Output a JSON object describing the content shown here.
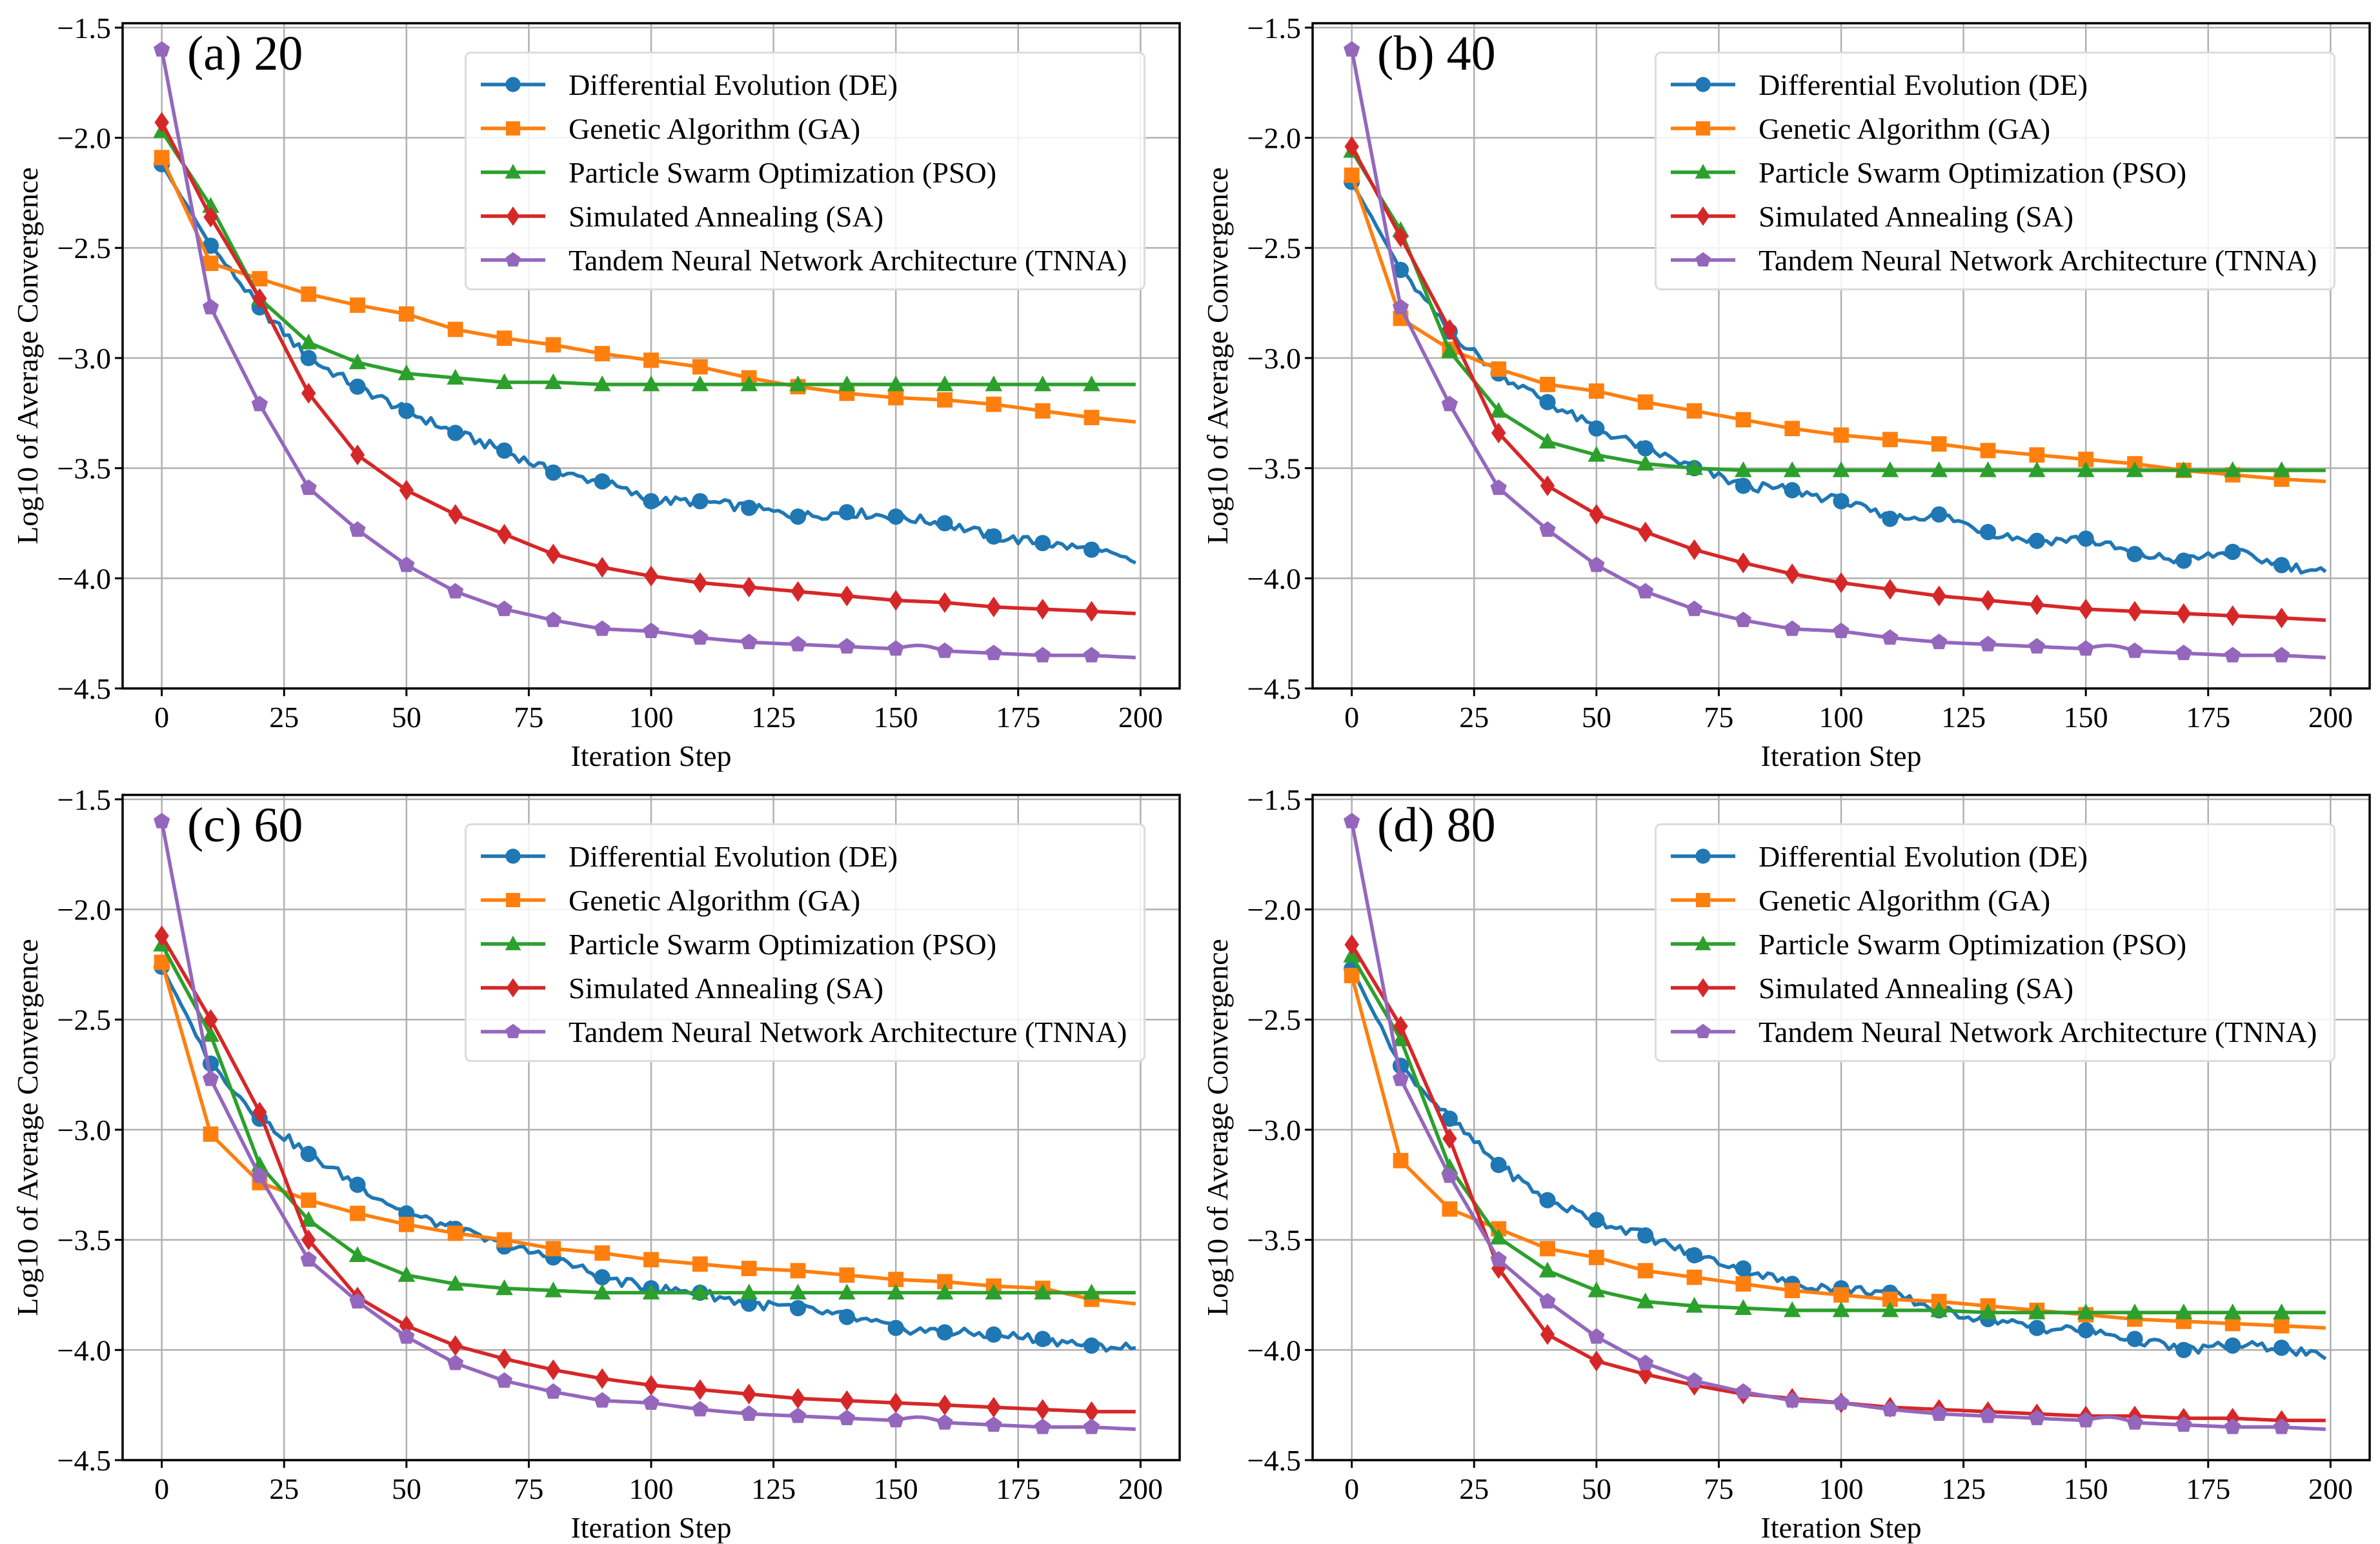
{
  "figure": {
    "legend_labels": [
      "Differential Evolution (DE)",
      "Genetic Algorithm (GA)",
      "Particle Swarm Optimization (PSO)",
      "Simulated Annealing (SA)",
      "Tandem Neural Network Architecture (TNNA)"
    ],
    "colors": {
      "DE": "#1f77b4",
      "GA": "#ff7f0e",
      "PSO": "#2ca02c",
      "SA": "#d62728",
      "TNNA": "#9467bd"
    }
  },
  "chart_data": [
    {
      "type": "line",
      "title": "(a) 20",
      "xlabel": "Iteration Step",
      "ylabel": "Log10 of Average Convergence",
      "xlim": [
        -8,
        208
      ],
      "ylim": [
        -4.5,
        -1.48
      ],
      "xticks": [
        0,
        25,
        50,
        75,
        100,
        125,
        150,
        175,
        200
      ],
      "yticks": [
        -4.5,
        -4.0,
        -3.5,
        -3.0,
        -2.5,
        -2.0,
        -1.5
      ],
      "ytick_labels": [
        "−4.5",
        "−4.0",
        "−3.5",
        "−3.0",
        "−2.5",
        "−2.0",
        "−1.5"
      ],
      "grid": true,
      "legend_position": "top-right",
      "x": [
        0,
        10,
        20,
        30,
        40,
        50,
        60,
        70,
        80,
        90,
        100,
        110,
        120,
        130,
        140,
        150,
        160,
        170,
        180,
        190,
        199
      ],
      "series": [
        {
          "name": "Differential Evolution (DE)",
          "key": "DE",
          "marker": "circle",
          "values": [
            -2.12,
            -2.49,
            -2.77,
            -3.0,
            -3.13,
            -3.24,
            -3.34,
            -3.42,
            -3.52,
            -3.56,
            -3.65,
            -3.65,
            -3.68,
            -3.72,
            -3.7,
            -3.72,
            -3.75,
            -3.81,
            -3.84,
            -3.87,
            -3.93
          ]
        },
        {
          "name": "Genetic Algorithm (GA)",
          "key": "GA",
          "marker": "square",
          "values": [
            -2.09,
            -2.57,
            -2.64,
            -2.71,
            -2.76,
            -2.8,
            -2.87,
            -2.91,
            -2.94,
            -2.98,
            -3.01,
            -3.04,
            -3.09,
            -3.13,
            -3.16,
            -3.18,
            -3.19,
            -3.21,
            -3.24,
            -3.27,
            -3.29
          ]
        },
        {
          "name": "Particle Swarm Optimization (PSO)",
          "key": "PSO",
          "marker": "triangle",
          "values": [
            -1.97,
            -2.31,
            -2.73,
            -2.93,
            -3.02,
            -3.07,
            -3.09,
            -3.11,
            -3.11,
            -3.12,
            -3.12,
            -3.12,
            -3.12,
            -3.12,
            -3.12,
            -3.12,
            -3.12,
            -3.12,
            -3.12,
            -3.12,
            -3.12
          ]
        },
        {
          "name": "Simulated Annealing (SA)",
          "key": "SA",
          "marker": "diamond",
          "values": [
            -1.93,
            -2.36,
            -2.73,
            -3.16,
            -3.44,
            -3.6,
            -3.71,
            -3.8,
            -3.89,
            -3.95,
            -3.99,
            -4.02,
            -4.04,
            -4.06,
            -4.08,
            -4.1,
            -4.11,
            -4.13,
            -4.14,
            -4.15,
            -4.16
          ]
        },
        {
          "name": "Tandem Neural Network Architecture (TNNA)",
          "key": "TNNA",
          "marker": "pentagon",
          "values": [
            -1.6,
            -2.77,
            -3.21,
            -3.59,
            -3.78,
            -3.94,
            -4.06,
            -4.14,
            -4.19,
            -4.23,
            -4.24,
            -4.27,
            -4.29,
            -4.3,
            -4.31,
            -4.32,
            -4.33,
            -4.34,
            -4.35,
            -4.35,
            -4.36
          ]
        }
      ]
    },
    {
      "type": "line",
      "title": "(b) 40",
      "xlabel": "Iteration Step",
      "ylabel": "Log10 of Average Convergence",
      "xlim": [
        -8,
        208
      ],
      "ylim": [
        -4.5,
        -1.48
      ],
      "xticks": [
        0,
        25,
        50,
        75,
        100,
        125,
        150,
        175,
        200
      ],
      "yticks": [
        -4.5,
        -4.0,
        -3.5,
        -3.0,
        -2.5,
        -2.0,
        -1.5
      ],
      "ytick_labels": [
        "−4.5",
        "−4.0",
        "−3.5",
        "−3.0",
        "−2.5",
        "−2.0",
        "−1.5"
      ],
      "grid": true,
      "legend_position": "top-right",
      "x": [
        0,
        10,
        20,
        30,
        40,
        50,
        60,
        70,
        80,
        90,
        100,
        110,
        120,
        130,
        140,
        150,
        160,
        170,
        180,
        190,
        199
      ],
      "series": [
        {
          "name": "Differential Evolution (DE)",
          "key": "DE",
          "marker": "circle",
          "values": [
            -2.2,
            -2.6,
            -2.88,
            -3.07,
            -3.2,
            -3.32,
            -3.41,
            -3.5,
            -3.58,
            -3.6,
            -3.65,
            -3.73,
            -3.71,
            -3.79,
            -3.83,
            -3.82,
            -3.89,
            -3.92,
            -3.88,
            -3.94,
            -3.97
          ]
        },
        {
          "name": "Genetic Algorithm (GA)",
          "key": "GA",
          "marker": "square",
          "values": [
            -2.17,
            -2.82,
            -2.96,
            -3.05,
            -3.12,
            -3.15,
            -3.2,
            -3.24,
            -3.28,
            -3.32,
            -3.35,
            -3.37,
            -3.39,
            -3.42,
            -3.44,
            -3.46,
            -3.48,
            -3.51,
            -3.53,
            -3.55,
            -3.56
          ]
        },
        {
          "name": "Particle Swarm Optimization (PSO)",
          "key": "PSO",
          "marker": "triangle",
          "values": [
            -2.06,
            -2.42,
            -2.97,
            -3.24,
            -3.38,
            -3.44,
            -3.48,
            -3.5,
            -3.51,
            -3.51,
            -3.51,
            -3.51,
            -3.51,
            -3.51,
            -3.51,
            -3.51,
            -3.51,
            -3.51,
            -3.51,
            -3.51,
            -3.51
          ]
        },
        {
          "name": "Simulated Annealing (SA)",
          "key": "SA",
          "marker": "diamond",
          "values": [
            -2.04,
            -2.45,
            -2.87,
            -3.34,
            -3.58,
            -3.71,
            -3.79,
            -3.87,
            -3.93,
            -3.98,
            -4.02,
            -4.05,
            -4.08,
            -4.1,
            -4.12,
            -4.14,
            -4.15,
            -4.16,
            -4.17,
            -4.18,
            -4.19
          ]
        },
        {
          "name": "Tandem Neural Network Architecture (TNNA)",
          "key": "TNNA",
          "marker": "pentagon",
          "values": [
            -1.6,
            -2.77,
            -3.21,
            -3.59,
            -3.78,
            -3.94,
            -4.06,
            -4.14,
            -4.19,
            -4.23,
            -4.24,
            -4.27,
            -4.29,
            -4.3,
            -4.31,
            -4.32,
            -4.33,
            -4.34,
            -4.35,
            -4.35,
            -4.36
          ]
        }
      ]
    },
    {
      "type": "line",
      "title": "(c) 60",
      "xlabel": "Iteration Step",
      "ylabel": "Log10 of Average Convergence",
      "xlim": [
        -8,
        208
      ],
      "ylim": [
        -4.5,
        -1.48
      ],
      "xticks": [
        0,
        25,
        50,
        75,
        100,
        125,
        150,
        175,
        200
      ],
      "yticks": [
        -4.5,
        -4.0,
        -3.5,
        -3.0,
        -2.5,
        -2.0,
        -1.5
      ],
      "ytick_labels": [
        "−4.5",
        "−4.0",
        "−3.5",
        "−3.0",
        "−2.5",
        "−2.0",
        "−1.5"
      ],
      "grid": true,
      "legend_position": "top-right",
      "x": [
        0,
        10,
        20,
        30,
        40,
        50,
        60,
        70,
        80,
        90,
        100,
        110,
        120,
        130,
        140,
        150,
        160,
        170,
        180,
        190,
        199
      ],
      "series": [
        {
          "name": "Differential Evolution (DE)",
          "key": "DE",
          "marker": "circle",
          "values": [
            -2.26,
            -2.7,
            -2.95,
            -3.11,
            -3.25,
            -3.38,
            -3.45,
            -3.53,
            -3.58,
            -3.67,
            -3.72,
            -3.74,
            -3.79,
            -3.81,
            -3.85,
            -3.9,
            -3.92,
            -3.93,
            -3.95,
            -3.98,
            -3.99
          ]
        },
        {
          "name": "Genetic Algorithm (GA)",
          "key": "GA",
          "marker": "square",
          "values": [
            -2.24,
            -3.02,
            -3.24,
            -3.32,
            -3.38,
            -3.43,
            -3.47,
            -3.5,
            -3.54,
            -3.56,
            -3.59,
            -3.61,
            -3.63,
            -3.64,
            -3.66,
            -3.68,
            -3.69,
            -3.71,
            -3.72,
            -3.77,
            -3.79
          ]
        },
        {
          "name": "Particle Swarm Optimization (PSO)",
          "key": "PSO",
          "marker": "triangle",
          "values": [
            -2.16,
            -2.57,
            -3.16,
            -3.41,
            -3.57,
            -3.66,
            -3.7,
            -3.72,
            -3.73,
            -3.74,
            -3.74,
            -3.74,
            -3.74,
            -3.74,
            -3.74,
            -3.74,
            -3.74,
            -3.74,
            -3.74,
            -3.74,
            -3.74
          ]
        },
        {
          "name": "Simulated Annealing (SA)",
          "key": "SA",
          "marker": "diamond",
          "values": [
            -2.12,
            -2.5,
            -2.92,
            -3.5,
            -3.76,
            -3.89,
            -3.98,
            -4.04,
            -4.09,
            -4.13,
            -4.16,
            -4.18,
            -4.2,
            -4.22,
            -4.23,
            -4.24,
            -4.25,
            -4.26,
            -4.27,
            -4.28,
            -4.28
          ]
        },
        {
          "name": "Tandem Neural Network Architecture (TNNA)",
          "key": "TNNA",
          "marker": "pentagon",
          "values": [
            -1.6,
            -2.77,
            -3.21,
            -3.59,
            -3.78,
            -3.94,
            -4.06,
            -4.14,
            -4.19,
            -4.23,
            -4.24,
            -4.27,
            -4.29,
            -4.3,
            -4.31,
            -4.32,
            -4.33,
            -4.34,
            -4.35,
            -4.35,
            -4.36
          ]
        }
      ]
    },
    {
      "type": "line",
      "title": "(d) 80",
      "xlabel": "Iteration Step",
      "ylabel": "Log10 of Average Convergence",
      "xlim": [
        -8,
        208
      ],
      "ylim": [
        -4.5,
        -1.48
      ],
      "xticks": [
        0,
        25,
        50,
        75,
        100,
        125,
        150,
        175,
        200
      ],
      "yticks": [
        -4.5,
        -4.0,
        -3.5,
        -3.0,
        -2.5,
        -2.0,
        -1.5
      ],
      "ytick_labels": [
        "−4.5",
        "−4.0",
        "−3.5",
        "−3.0",
        "−2.5",
        "−2.0",
        "−1.5"
      ],
      "grid": true,
      "legend_position": "top-right",
      "x": [
        0,
        10,
        20,
        30,
        40,
        50,
        60,
        70,
        80,
        90,
        100,
        110,
        120,
        130,
        140,
        150,
        160,
        170,
        180,
        190,
        199
      ],
      "series": [
        {
          "name": "Differential Evolution (DE)",
          "key": "DE",
          "marker": "circle",
          "values": [
            -2.27,
            -2.71,
            -2.95,
            -3.16,
            -3.32,
            -3.41,
            -3.48,
            -3.57,
            -3.63,
            -3.7,
            -3.72,
            -3.74,
            -3.82,
            -3.86,
            -3.9,
            -3.91,
            -3.95,
            -4.0,
            -3.98,
            -3.99,
            -4.04
          ]
        },
        {
          "name": "Genetic Algorithm (GA)",
          "key": "GA",
          "marker": "square",
          "values": [
            -2.3,
            -3.14,
            -3.36,
            -3.45,
            -3.54,
            -3.58,
            -3.64,
            -3.67,
            -3.7,
            -3.73,
            -3.75,
            -3.77,
            -3.78,
            -3.8,
            -3.82,
            -3.84,
            -3.86,
            -3.87,
            -3.88,
            -3.89,
            -3.9
          ]
        },
        {
          "name": "Particle Swarm Optimization (PSO)",
          "key": "PSO",
          "marker": "triangle",
          "values": [
            -2.21,
            -2.59,
            -3.17,
            -3.49,
            -3.64,
            -3.73,
            -3.78,
            -3.8,
            -3.81,
            -3.82,
            -3.82,
            -3.82,
            -3.82,
            -3.83,
            -3.83,
            -3.83,
            -3.83,
            -3.83,
            -3.83,
            -3.83,
            -3.83
          ]
        },
        {
          "name": "Simulated Annealing (SA)",
          "key": "SA",
          "marker": "diamond",
          "values": [
            -2.16,
            -2.53,
            -3.04,
            -3.63,
            -3.93,
            -4.05,
            -4.11,
            -4.16,
            -4.2,
            -4.22,
            -4.24,
            -4.26,
            -4.27,
            -4.28,
            -4.29,
            -4.3,
            -4.3,
            -4.31,
            -4.31,
            -4.32,
            -4.32
          ]
        },
        {
          "name": "Tandem Neural Network Architecture (TNNA)",
          "key": "TNNA",
          "marker": "pentagon",
          "values": [
            -1.6,
            -2.77,
            -3.21,
            -3.59,
            -3.78,
            -3.94,
            -4.06,
            -4.14,
            -4.19,
            -4.23,
            -4.24,
            -4.27,
            -4.29,
            -4.3,
            -4.31,
            -4.32,
            -4.33,
            -4.34,
            -4.35,
            -4.35,
            -4.36
          ]
        }
      ]
    }
  ]
}
